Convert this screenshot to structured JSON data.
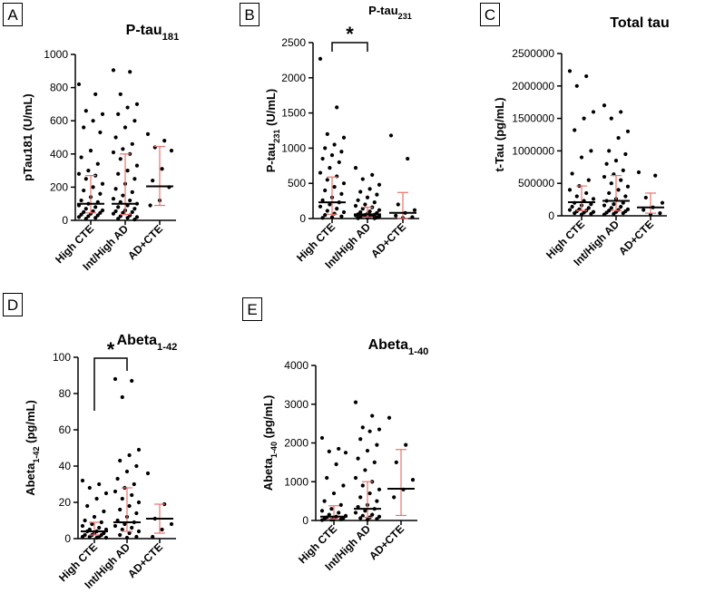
{
  "colors": {
    "axis": "#000000",
    "point": "#000000",
    "errorbar": "#e8736c",
    "median": "#000000"
  },
  "chart_data": [
    {
      "panel": "A",
      "type": "scatter",
      "title": "P-tau",
      "title_sub": "181",
      "ylabel": "pTau181 (U/mL)",
      "categories": [
        "High CTE",
        "Int/High AD",
        "AD+CTE"
      ],
      "ylim": [
        0,
        1000
      ],
      "yticks": [
        0,
        200,
        400,
        600,
        800,
        1000
      ],
      "ytick_labels": [
        "0",
        "200",
        "400",
        "600",
        "800",
        "1000"
      ],
      "summary": [
        {
          "median": 100,
          "q1": 45,
          "q3": 270
        },
        {
          "median": 100,
          "q1": 35,
          "q3": 400
        },
        {
          "median": 205,
          "q1": 90,
          "q3": 445
        }
      ],
      "points": [
        [
          820,
          760,
          660,
          640,
          600,
          560,
          530,
          420,
          380,
          340,
          300,
          280,
          270,
          250,
          220,
          200,
          180,
          160,
          140,
          120,
          110,
          100,
          90,
          80,
          70,
          60,
          55,
          50,
          45,
          40,
          35,
          30,
          25,
          20,
          15,
          10
        ],
        [
          905,
          895,
          760,
          700,
          680,
          640,
          600,
          560,
          500,
          460,
          430,
          410,
          400,
          370,
          330,
          300,
          280,
          250,
          220,
          190,
          170,
          150,
          130,
          120,
          110,
          100,
          90,
          80,
          70,
          60,
          55,
          50,
          45,
          40,
          30,
          25,
          20,
          15,
          10,
          5
        ],
        [
          520,
          480,
          440,
          420,
          310,
          240,
          200,
          120,
          90
        ]
      ]
    },
    {
      "panel": "B",
      "type": "scatter",
      "title": "P-tau",
      "title_sub": "231",
      "ylabel": "P-tau",
      "ylabel_sub": "231",
      "ylabel_tail": " (U/mL)",
      "categories": [
        "High CTE",
        "Int/High AD",
        "AD+CTE"
      ],
      "ylim": [
        0,
        2500
      ],
      "yticks": [
        0,
        500,
        1000,
        1500,
        2000,
        2500
      ],
      "ytick_labels": [
        "0",
        "500",
        "1000",
        "1500",
        "2000",
        "2500"
      ],
      "significance": {
        "from": 0,
        "to": 1,
        "label": "*"
      },
      "summary": [
        {
          "median": 230,
          "q1": 60,
          "q3": 590
        },
        {
          "median": 60,
          "q1": 20,
          "q3": 160
        },
        {
          "median": 80,
          "q1": 0,
          "q3": 370
        }
      ],
      "points": [
        [
          2270,
          1580,
          1200,
          1150,
          1050,
          1000,
          950,
          900,
          850,
          800,
          720,
          650,
          600,
          550,
          500,
          450,
          400,
          350,
          300,
          260,
          230,
          200,
          170,
          140,
          110,
          90,
          70,
          50,
          30,
          20,
          10
        ],
        [
          720,
          620,
          560,
          480,
          420,
          380,
          340,
          300,
          260,
          230,
          200,
          180,
          160,
          140,
          120,
          100,
          90,
          80,
          70,
          60,
          55,
          50,
          45,
          40,
          35,
          30,
          25,
          20,
          15,
          10,
          5,
          3
        ],
        [
          1180,
          850,
          200,
          120,
          80,
          40,
          20,
          10
        ]
      ]
    },
    {
      "panel": "C",
      "type": "scatter",
      "title": "Total tau",
      "ylabel": "t-Tau (pg/mL)",
      "categories": [
        "High CTE",
        "Int/High AD",
        "AD+CTE"
      ],
      "ylim": [
        0,
        2500000
      ],
      "yticks": [
        0,
        500000,
        1000000,
        1500000,
        2000000,
        2500000
      ],
      "ytick_labels": [
        "0",
        "500000",
        "1000000",
        "1500000",
        "2000000",
        "2500000"
      ],
      "summary": [
        {
          "median": 210000,
          "q1": 80000,
          "q3": 460000
        },
        {
          "median": 230000,
          "q1": 80000,
          "q3": 620000
        },
        {
          "median": 130000,
          "q1": 40000,
          "q3": 350000
        }
      ],
      "points": [
        [
          2230000,
          2150000,
          2000000,
          1600000,
          1500000,
          1320000,
          1000000,
          900000,
          650000,
          550000,
          460000,
          400000,
          350000,
          300000,
          260000,
          230000,
          200000,
          180000,
          160000,
          140000,
          120000,
          100000,
          90000,
          80000,
          70000,
          60000,
          50000,
          40000,
          30000,
          20000
        ],
        [
          1700000,
          1600000,
          1500000,
          1300000,
          1200000,
          1000000,
          950000,
          850000,
          800000,
          700000,
          640000,
          600000,
          550000,
          500000,
          450000,
          400000,
          350000,
          300000,
          260000,
          230000,
          200000,
          180000,
          160000,
          140000,
          120000,
          100000,
          90000,
          80000,
          70000,
          60000,
          50000,
          40000,
          30000,
          20000
        ],
        [
          670000,
          620000,
          280000,
          200000,
          130000,
          90000,
          40000,
          20000
        ]
      ]
    },
    {
      "panel": "D",
      "type": "scatter",
      "title": "Abeta",
      "title_sub": "1-42",
      "ylabel": "Abeta",
      "ylabel_sub": "1-42",
      "ylabel_tail": " (pg/mL)",
      "categories": [
        "High CTE",
        "Int/High AD",
        "AD+CTE"
      ],
      "ylim": [
        0,
        100
      ],
      "yticks": [
        0,
        20,
        40,
        60,
        80,
        100
      ],
      "ytick_labels": [
        "0",
        "20",
        "40",
        "60",
        "80",
        "100"
      ],
      "significance": {
        "from": 0,
        "to": 1,
        "label": "*"
      },
      "summary": [
        {
          "median": 4,
          "q1": 2,
          "q3": 9
        },
        {
          "median": 9,
          "q1": 4,
          "q3": 28
        },
        {
          "median": 11,
          "q1": 3,
          "q3": 19
        }
      ],
      "points": [
        [
          32,
          30,
          28,
          25,
          22,
          18,
          15,
          12,
          10,
          9,
          8,
          7,
          6,
          5,
          5,
          4,
          4,
          3,
          3,
          2,
          2,
          2,
          1,
          1,
          1,
          0.5,
          0.5
        ],
        [
          88,
          87,
          78,
          49,
          46,
          43,
          40,
          37,
          33,
          30,
          28,
          26,
          24,
          22,
          20,
          18,
          16,
          14,
          12,
          10,
          9,
          8,
          7,
          6,
          5,
          4,
          3,
          2,
          1,
          0.5
        ],
        [
          36,
          19,
          11,
          8,
          5,
          1
        ]
      ]
    },
    {
      "panel": "E",
      "type": "scatter",
      "title": "Abeta",
      "title_sub": "1-40",
      "ylabel": "Abeta",
      "ylabel_sub": "1-40",
      "ylabel_tail": " (pg/mL)",
      "categories": [
        "High CTE",
        "Int/High AD",
        "AD+CTE"
      ],
      "ylim": [
        0,
        4000
      ],
      "yticks": [
        0,
        1000,
        2000,
        3000,
        4000
      ],
      "ytick_labels": [
        "0",
        "1000",
        "2000",
        "3000",
        "4000"
      ],
      "summary": [
        {
          "median": 100,
          "q1": 40,
          "q3": 380
        },
        {
          "median": 300,
          "q1": 80,
          "q3": 1000
        },
        {
          "median": 820,
          "q1": 130,
          "q3": 1830
        }
      ],
      "points": [
        [
          2130,
          1850,
          1780,
          1750,
          1450,
          1100,
          900,
          700,
          500,
          400,
          300,
          250,
          200,
          150,
          120,
          100,
          80,
          60,
          50,
          40,
          30,
          20,
          10
        ],
        [
          3050,
          2700,
          2400,
          2350,
          2300,
          2100,
          1950,
          1800,
          1600,
          1500,
          1300,
          1100,
          1000,
          900,
          800,
          700,
          600,
          500,
          400,
          350,
          300,
          250,
          200,
          150,
          120,
          100,
          80,
          60,
          40,
          20
        ],
        [
          2650,
          1950,
          1500,
          1050,
          800,
          600
        ]
      ]
    }
  ]
}
